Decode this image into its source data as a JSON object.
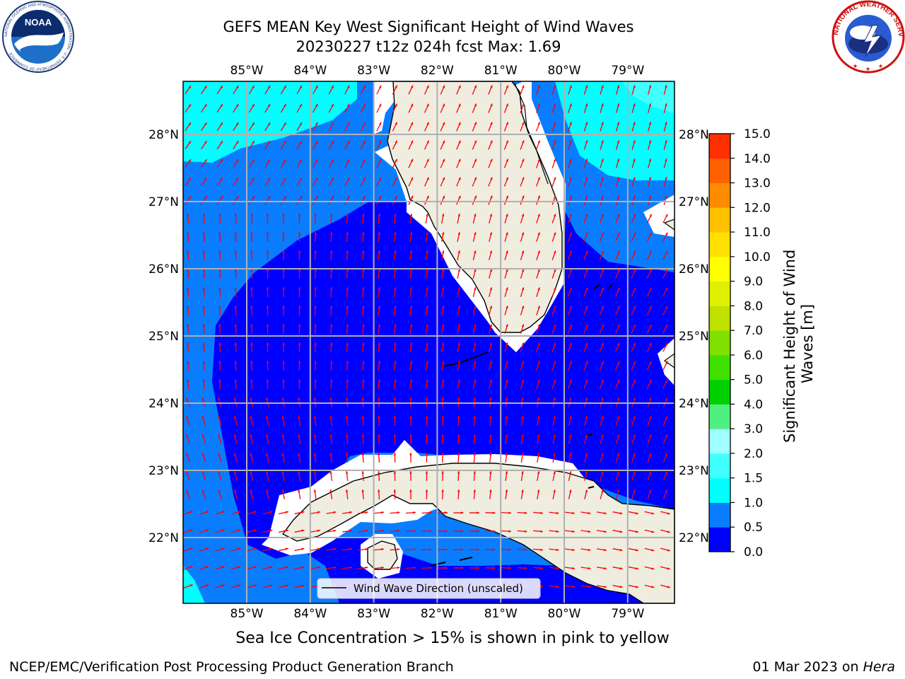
{
  "title_line1": "GEFS MEAN Key West Significant Height of Wind Waves",
  "title_line2": "20230227 t12z 024h fcst   Max: 1.69",
  "map": {
    "lon_ticks": [
      "85°W",
      "84°W",
      "83°W",
      "82°W",
      "81°W",
      "80°W",
      "79°W"
    ],
    "lat_ticks": [
      "28°N",
      "27°N",
      "26°N",
      "25°N",
      "24°N",
      "23°N",
      "22°N"
    ],
    "legend_label": "Wind Wave Direction (unscaled)",
    "arrow_color": "#ff0000",
    "land_color": "#eeeddf",
    "ocean_low_color": "#0000ff",
    "ocean_mid_color": "#0a7dff",
    "ocean_high_color": "#00ffff"
  },
  "colorbar": {
    "label": "Significant Height of Wind\nWaves [m]",
    "ticks": [
      "15.0",
      "14.0",
      "13.0",
      "12.0",
      "11.0",
      "10.0",
      "9.0",
      "8.0",
      "7.0",
      "6.0",
      "5.0",
      "4.0",
      "3.0",
      "2.0",
      "1.5",
      "1.0",
      "0.5",
      "0.0"
    ],
    "colors": [
      "#0000ff",
      "#0a7dff",
      "#00ffff",
      "#40ffff",
      "#a0ffff",
      "#50f080",
      "#00d000",
      "#40e000",
      "#80e000",
      "#c0e000",
      "#e0f000",
      "#ffff00",
      "#ffe000",
      "#ffc000",
      "#ff8c00",
      "#ff6000",
      "#ff3000",
      "#ff0000"
    ]
  },
  "caption": "Sea Ice Concentration > 15% is shown in pink to yellow",
  "footer_left": "NCEP/EMC/Verification Post Processing Product Generation Branch",
  "footer_date": "01 Mar 2023 on ",
  "footer_host": "Hera",
  "logos": {
    "noaa_text": "NOAA",
    "noaa_ring": "NATIONAL OCEANIC AND ATMOSPHERIC ADMINISTRATION · U.S. DEPARTMENT OF COMMERCE",
    "nws_ring": "NATIONAL WEATHER SERVICE"
  }
}
